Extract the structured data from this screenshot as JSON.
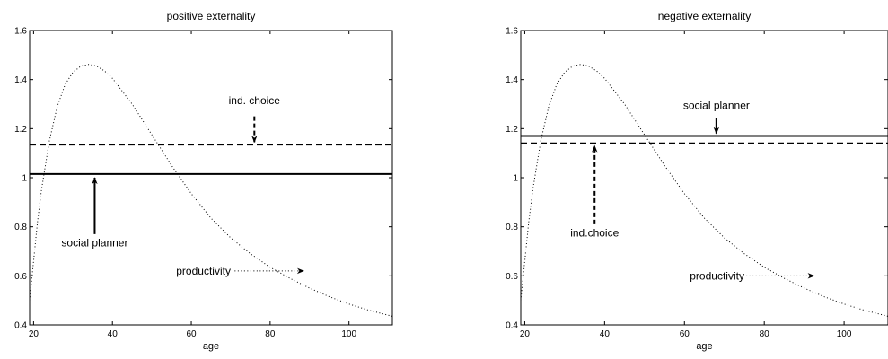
{
  "chart_data": [
    {
      "type": "line",
      "title": "positive externality",
      "xlabel": "age",
      "ylabel": "",
      "xlim": [
        19,
        111
      ],
      "ylim": [
        0.4,
        1.6
      ],
      "xticks": [
        20,
        40,
        60,
        80,
        100
      ],
      "yticks": [
        0.4,
        0.6,
        0.8,
        1.0,
        1.2,
        1.4,
        1.6
      ],
      "xticklabels": [
        "20",
        "40",
        "60",
        "80",
        "100"
      ],
      "yticklabels": [
        "0.4",
        "0.6",
        "0.8",
        "1",
        "1.2",
        "1.4",
        "1.6"
      ],
      "grid": false,
      "series": [
        {
          "name": "productivity",
          "style": "dotted",
          "x": [
            19,
            20,
            21,
            22,
            24,
            26,
            28,
            30,
            32,
            34,
            36,
            38,
            40,
            45,
            50,
            55,
            60,
            65,
            70,
            75,
            80,
            85,
            90,
            95,
            100,
            105,
            111
          ],
          "y": [
            0.5,
            0.66,
            0.82,
            0.95,
            1.15,
            1.29,
            1.38,
            1.43,
            1.455,
            1.462,
            1.455,
            1.435,
            1.405,
            1.3,
            1.175,
            1.05,
            0.935,
            0.835,
            0.755,
            0.69,
            0.635,
            0.59,
            0.55,
            0.515,
            0.485,
            0.46,
            0.435
          ]
        },
        {
          "name": "ind. choice",
          "style": "dashed",
          "x": [
            19,
            111
          ],
          "y": [
            1.135,
            1.135
          ]
        },
        {
          "name": "social planner",
          "style": "solid",
          "x": [
            19,
            111
          ],
          "y": [
            1.015,
            1.015
          ]
        }
      ],
      "annotations": [
        {
          "text": "ind. choice",
          "text_x": 76,
          "text_y": 1.315,
          "arrow": "dashed",
          "from": [
            76,
            1.25
          ],
          "to": [
            76,
            1.145
          ]
        },
        {
          "text": "social planner",
          "text_x": 35.5,
          "text_y": 0.735,
          "arrow": "solid",
          "from": [
            35.5,
            0.77
          ],
          "to": [
            35.5,
            1.0
          ]
        },
        {
          "text": "productivity",
          "text_x": 70,
          "text_y": 0.62,
          "arrow": "dotted",
          "from": [
            71,
            0.62
          ],
          "to": [
            88.5,
            0.62
          ]
        }
      ]
    },
    {
      "type": "line",
      "title": "negative externality",
      "xlabel": "age",
      "ylabel": "",
      "xlim": [
        19,
        111
      ],
      "ylim": [
        0.4,
        1.6
      ],
      "xticks": [
        20,
        40,
        60,
        80,
        100
      ],
      "yticks": [
        0.4,
        0.6,
        0.8,
        1.0,
        1.2,
        1.4,
        1.6
      ],
      "xticklabels": [
        "20",
        "40",
        "60",
        "80",
        "100"
      ],
      "yticklabels": [
        "0.4",
        "0.6",
        "0.8",
        "1",
        "1.2",
        "1.4",
        "1.6"
      ],
      "grid": false,
      "series": [
        {
          "name": "productivity",
          "style": "dotted",
          "x": [
            19,
            20,
            21,
            22,
            24,
            26,
            28,
            30,
            32,
            34,
            36,
            38,
            40,
            45,
            50,
            55,
            60,
            65,
            70,
            75,
            80,
            85,
            90,
            95,
            100,
            105,
            111
          ],
          "y": [
            0.5,
            0.66,
            0.82,
            0.95,
            1.15,
            1.29,
            1.38,
            1.43,
            1.455,
            1.462,
            1.455,
            1.435,
            1.405,
            1.3,
            1.175,
            1.05,
            0.935,
            0.835,
            0.755,
            0.69,
            0.635,
            0.59,
            0.55,
            0.515,
            0.485,
            0.46,
            0.435
          ]
        },
        {
          "name": "social planner",
          "style": "solid",
          "x": [
            19,
            111
          ],
          "y": [
            1.17,
            1.17
          ]
        },
        {
          "name": "ind.choice",
          "style": "dashed",
          "x": [
            19,
            111
          ],
          "y": [
            1.14,
            1.14
          ]
        }
      ],
      "annotations": [
        {
          "text": "social planner",
          "text_x": 68,
          "text_y": 1.295,
          "arrow": "solid",
          "from": [
            68,
            1.245
          ],
          "to": [
            68,
            1.18
          ]
        },
        {
          "text": "ind.choice",
          "text_x": 37.5,
          "text_y": 0.775,
          "arrow": "dashed",
          "from": [
            37.5,
            0.81
          ],
          "to": [
            37.5,
            1.13
          ]
        },
        {
          "text": "productivity",
          "text_x": 75,
          "text_y": 0.6,
          "arrow": "dotted",
          "from": [
            75.5,
            0.6
          ],
          "to": [
            92.5,
            0.6
          ]
        }
      ]
    }
  ]
}
